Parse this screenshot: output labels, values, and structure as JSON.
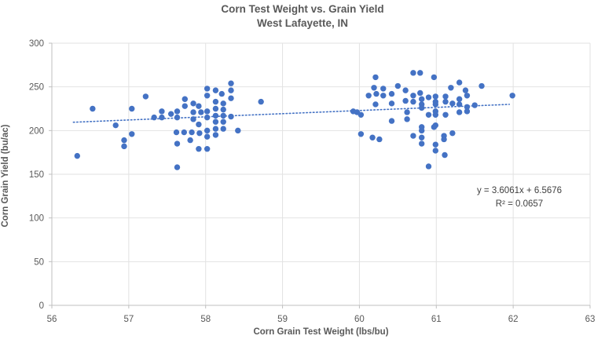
{
  "chart_data": {
    "type": "scatter",
    "title": "Corn Test Weight vs. Grain Yield",
    "subtitle": "West Lafayette, IN",
    "xlabel": "Corn Grain Test Weight (lbs/bu)",
    "ylabel": "Corn Grain Yield (bu/ac)",
    "xlim": [
      56,
      63
    ],
    "ylim": [
      0,
      300
    ],
    "x_ticks": [
      56,
      57,
      58,
      59,
      60,
      61,
      62,
      63
    ],
    "y_ticks": [
      0,
      50,
      100,
      150,
      200,
      250,
      300
    ],
    "grid": true,
    "legend": "none",
    "series": [
      {
        "name": "corn-yield-vs-test-weight",
        "points": [
          [
            56.33,
            171
          ],
          [
            56.53,
            225
          ],
          [
            56.83,
            206
          ],
          [
            56.94,
            189
          ],
          [
            56.94,
            182
          ],
          [
            57.04,
            225
          ],
          [
            57.04,
            196
          ],
          [
            57.22,
            239
          ],
          [
            57.33,
            215
          ],
          [
            57.43,
            222
          ],
          [
            57.43,
            215
          ],
          [
            57.55,
            219
          ],
          [
            57.62,
            198
          ],
          [
            57.63,
            222
          ],
          [
            57.63,
            215
          ],
          [
            57.63,
            185
          ],
          [
            57.63,
            158
          ],
          [
            57.72,
            198
          ],
          [
            57.73,
            236
          ],
          [
            57.73,
            228
          ],
          [
            57.8,
            189
          ],
          [
            57.82,
            198
          ],
          [
            57.84,
            231
          ],
          [
            57.84,
            221
          ],
          [
            57.84,
            213
          ],
          [
            57.91,
            228
          ],
          [
            57.91,
            207
          ],
          [
            57.91,
            179
          ],
          [
            57.92,
            197
          ],
          [
            57.94,
            221
          ],
          [
            58.02,
            248
          ],
          [
            58.02,
            240
          ],
          [
            58.02,
            222
          ],
          [
            58.02,
            215
          ],
          [
            58.02,
            200
          ],
          [
            58.02,
            193
          ],
          [
            58.02,
            179
          ],
          [
            58.13,
            246
          ],
          [
            58.13,
            233
          ],
          [
            58.13,
            225
          ],
          [
            58.13,
            217
          ],
          [
            58.13,
            210
          ],
          [
            58.13,
            202
          ],
          [
            58.13,
            195
          ],
          [
            58.21,
            242
          ],
          [
            58.23,
            231
          ],
          [
            58.23,
            224
          ],
          [
            58.23,
            217
          ],
          [
            58.23,
            210
          ],
          [
            58.23,
            202
          ],
          [
            58.33,
            254
          ],
          [
            58.33,
            246
          ],
          [
            58.33,
            237
          ],
          [
            58.33,
            216
          ],
          [
            58.42,
            200
          ],
          [
            58.72,
            233
          ],
          [
            59.92,
            222
          ],
          [
            59.97,
            221
          ],
          [
            60.02,
            218
          ],
          [
            60.02,
            196
          ],
          [
            60.12,
            240
          ],
          [
            60.17,
            192
          ],
          [
            60.19,
            249
          ],
          [
            60.21,
            261
          ],
          [
            60.21,
            230
          ],
          [
            60.22,
            242
          ],
          [
            60.26,
            190
          ],
          [
            60.31,
            248
          ],
          [
            60.31,
            240
          ],
          [
            60.42,
            242
          ],
          [
            60.42,
            231
          ],
          [
            60.42,
            211
          ],
          [
            60.5,
            251
          ],
          [
            60.6,
            246
          ],
          [
            60.6,
            234
          ],
          [
            60.62,
            221
          ],
          [
            60.62,
            213
          ],
          [
            60.7,
            266
          ],
          [
            60.7,
            240
          ],
          [
            60.7,
            233
          ],
          [
            60.7,
            194
          ],
          [
            60.79,
            266
          ],
          [
            60.79,
            243
          ],
          [
            60.81,
            236
          ],
          [
            60.81,
            230
          ],
          [
            60.81,
            226
          ],
          [
            60.81,
            204
          ],
          [
            60.81,
            200
          ],
          [
            60.81,
            192
          ],
          [
            60.81,
            185
          ],
          [
            60.9,
            238
          ],
          [
            60.9,
            218
          ],
          [
            60.9,
            159
          ],
          [
            60.97,
            261
          ],
          [
            60.97,
            204
          ],
          [
            60.99,
            239
          ],
          [
            60.99,
            233
          ],
          [
            60.99,
            230
          ],
          [
            60.99,
            222
          ],
          [
            60.99,
            218
          ],
          [
            60.99,
            206
          ],
          [
            60.99,
            184
          ],
          [
            60.99,
            177
          ],
          [
            61.1,
            194
          ],
          [
            61.1,
            190
          ],
          [
            61.11,
            172
          ],
          [
            61.12,
            239
          ],
          [
            61.12,
            233
          ],
          [
            61.12,
            218
          ],
          [
            61.19,
            249
          ],
          [
            61.21,
            231
          ],
          [
            61.21,
            197
          ],
          [
            61.3,
            255
          ],
          [
            61.3,
            236
          ],
          [
            61.3,
            230
          ],
          [
            61.3,
            221
          ],
          [
            61.38,
            246
          ],
          [
            61.4,
            240
          ],
          [
            61.4,
            227
          ],
          [
            61.4,
            222
          ],
          [
            61.5,
            229
          ],
          [
            61.59,
            251
          ],
          [
            61.99,
            240
          ]
        ]
      }
    ],
    "trendline": {
      "style": "dotted",
      "slope": 3.6061,
      "intercept": 6.5676,
      "x_start": 56.28,
      "x_end": 61.95,
      "label_equation": "y = 3.6061x + 6.5676",
      "label_r2": "R² = 0.0657"
    },
    "colors": {
      "marker": "#4472C4",
      "trendline": "#4472C4",
      "gridline": "#E2E2E2",
      "axis_line": "#BFBFBF",
      "title": "#595959",
      "axis_title": "#595959",
      "tick_label": "#595959",
      "annotation": "#404040"
    }
  }
}
